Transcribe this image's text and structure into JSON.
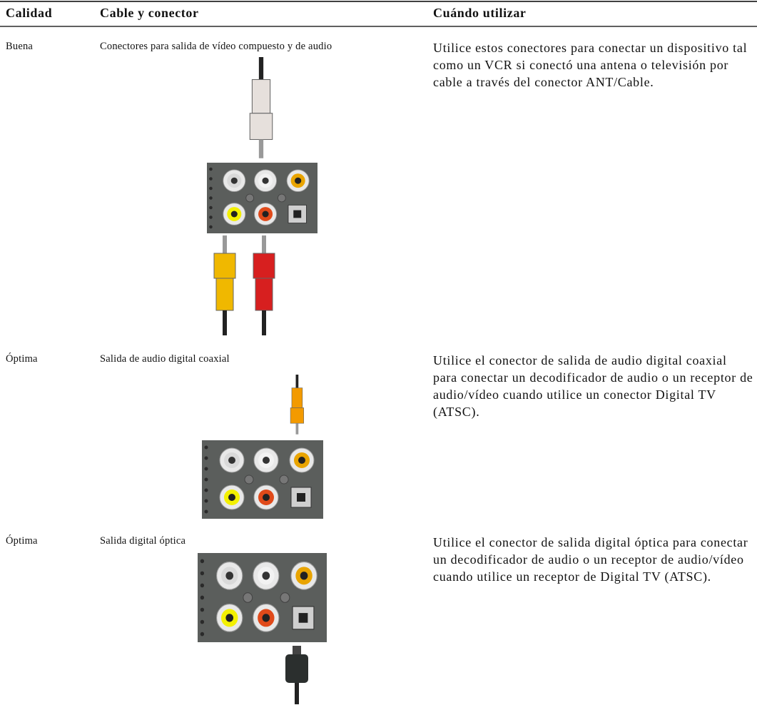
{
  "table": {
    "headers": [
      "Calidad",
      "Cable y conector",
      "Cuándo utilizar"
    ],
    "rows": [
      [
        "Buena",
        "Conectores para salida de vídeo compuesto y de audio",
        "Utilice estos conectores para conectar un dispositivo tal como un VCR si conectó una antena o televisión por cable a través del conector ANT/Cable."
      ],
      [
        "Óptima",
        "Salida de audio digital coaxial",
        "Utilice el conector de salida de audio digital coaxial para conectar un decodificador de audio o un receptor de audio/vídeo cuando utilice un conector Digital TV (ATSC)."
      ],
      [
        "Óptima",
        "Salida digital óptica",
        "Utilice el conector de salida digital óptica para conectar un decodificador de audio o un receptor de audio/vídeo cuando utilice un receptor de Digital TV (ATSC)."
      ]
    ]
  }
}
